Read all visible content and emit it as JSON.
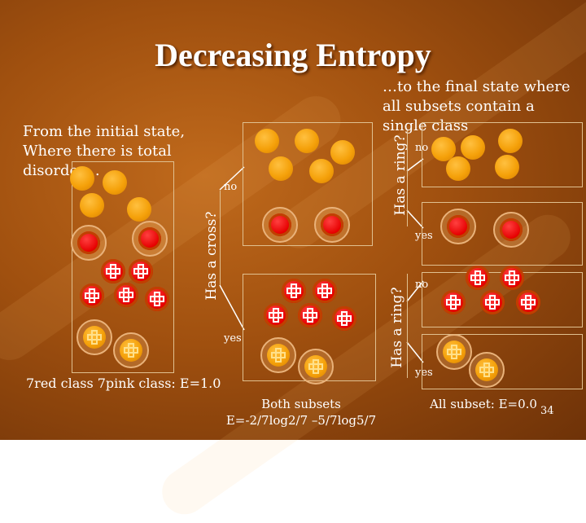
{
  "slide": {
    "title": "Decreasing Entropy",
    "subtitle": "…to the final state where all subsets contain a single class",
    "intro": "From the initial state, Where there is total disorder…",
    "cross_question": "Has a cross?",
    "ring_question_top": "Has a ring?",
    "ring_question_bottom": "Has a ring?",
    "no_label_1": "no",
    "yes_label_1": "yes",
    "no_label_2": "no",
    "yes_label_2": "yes",
    "no_label_3": "no",
    "yes_label_3": "yes",
    "initial_caption": "7red class 7pink class: E=1.0",
    "both_caption_1": "Both subsets",
    "both_caption_2": "E=-2/7log2/7 –5/7log5/7",
    "final_caption": "All subset: E=0.0",
    "page_number": "34"
  },
  "colors": {
    "orange": "#f5a10a",
    "red": "#e60000",
    "ring": "#e9b27a",
    "text": "#ffffff"
  }
}
